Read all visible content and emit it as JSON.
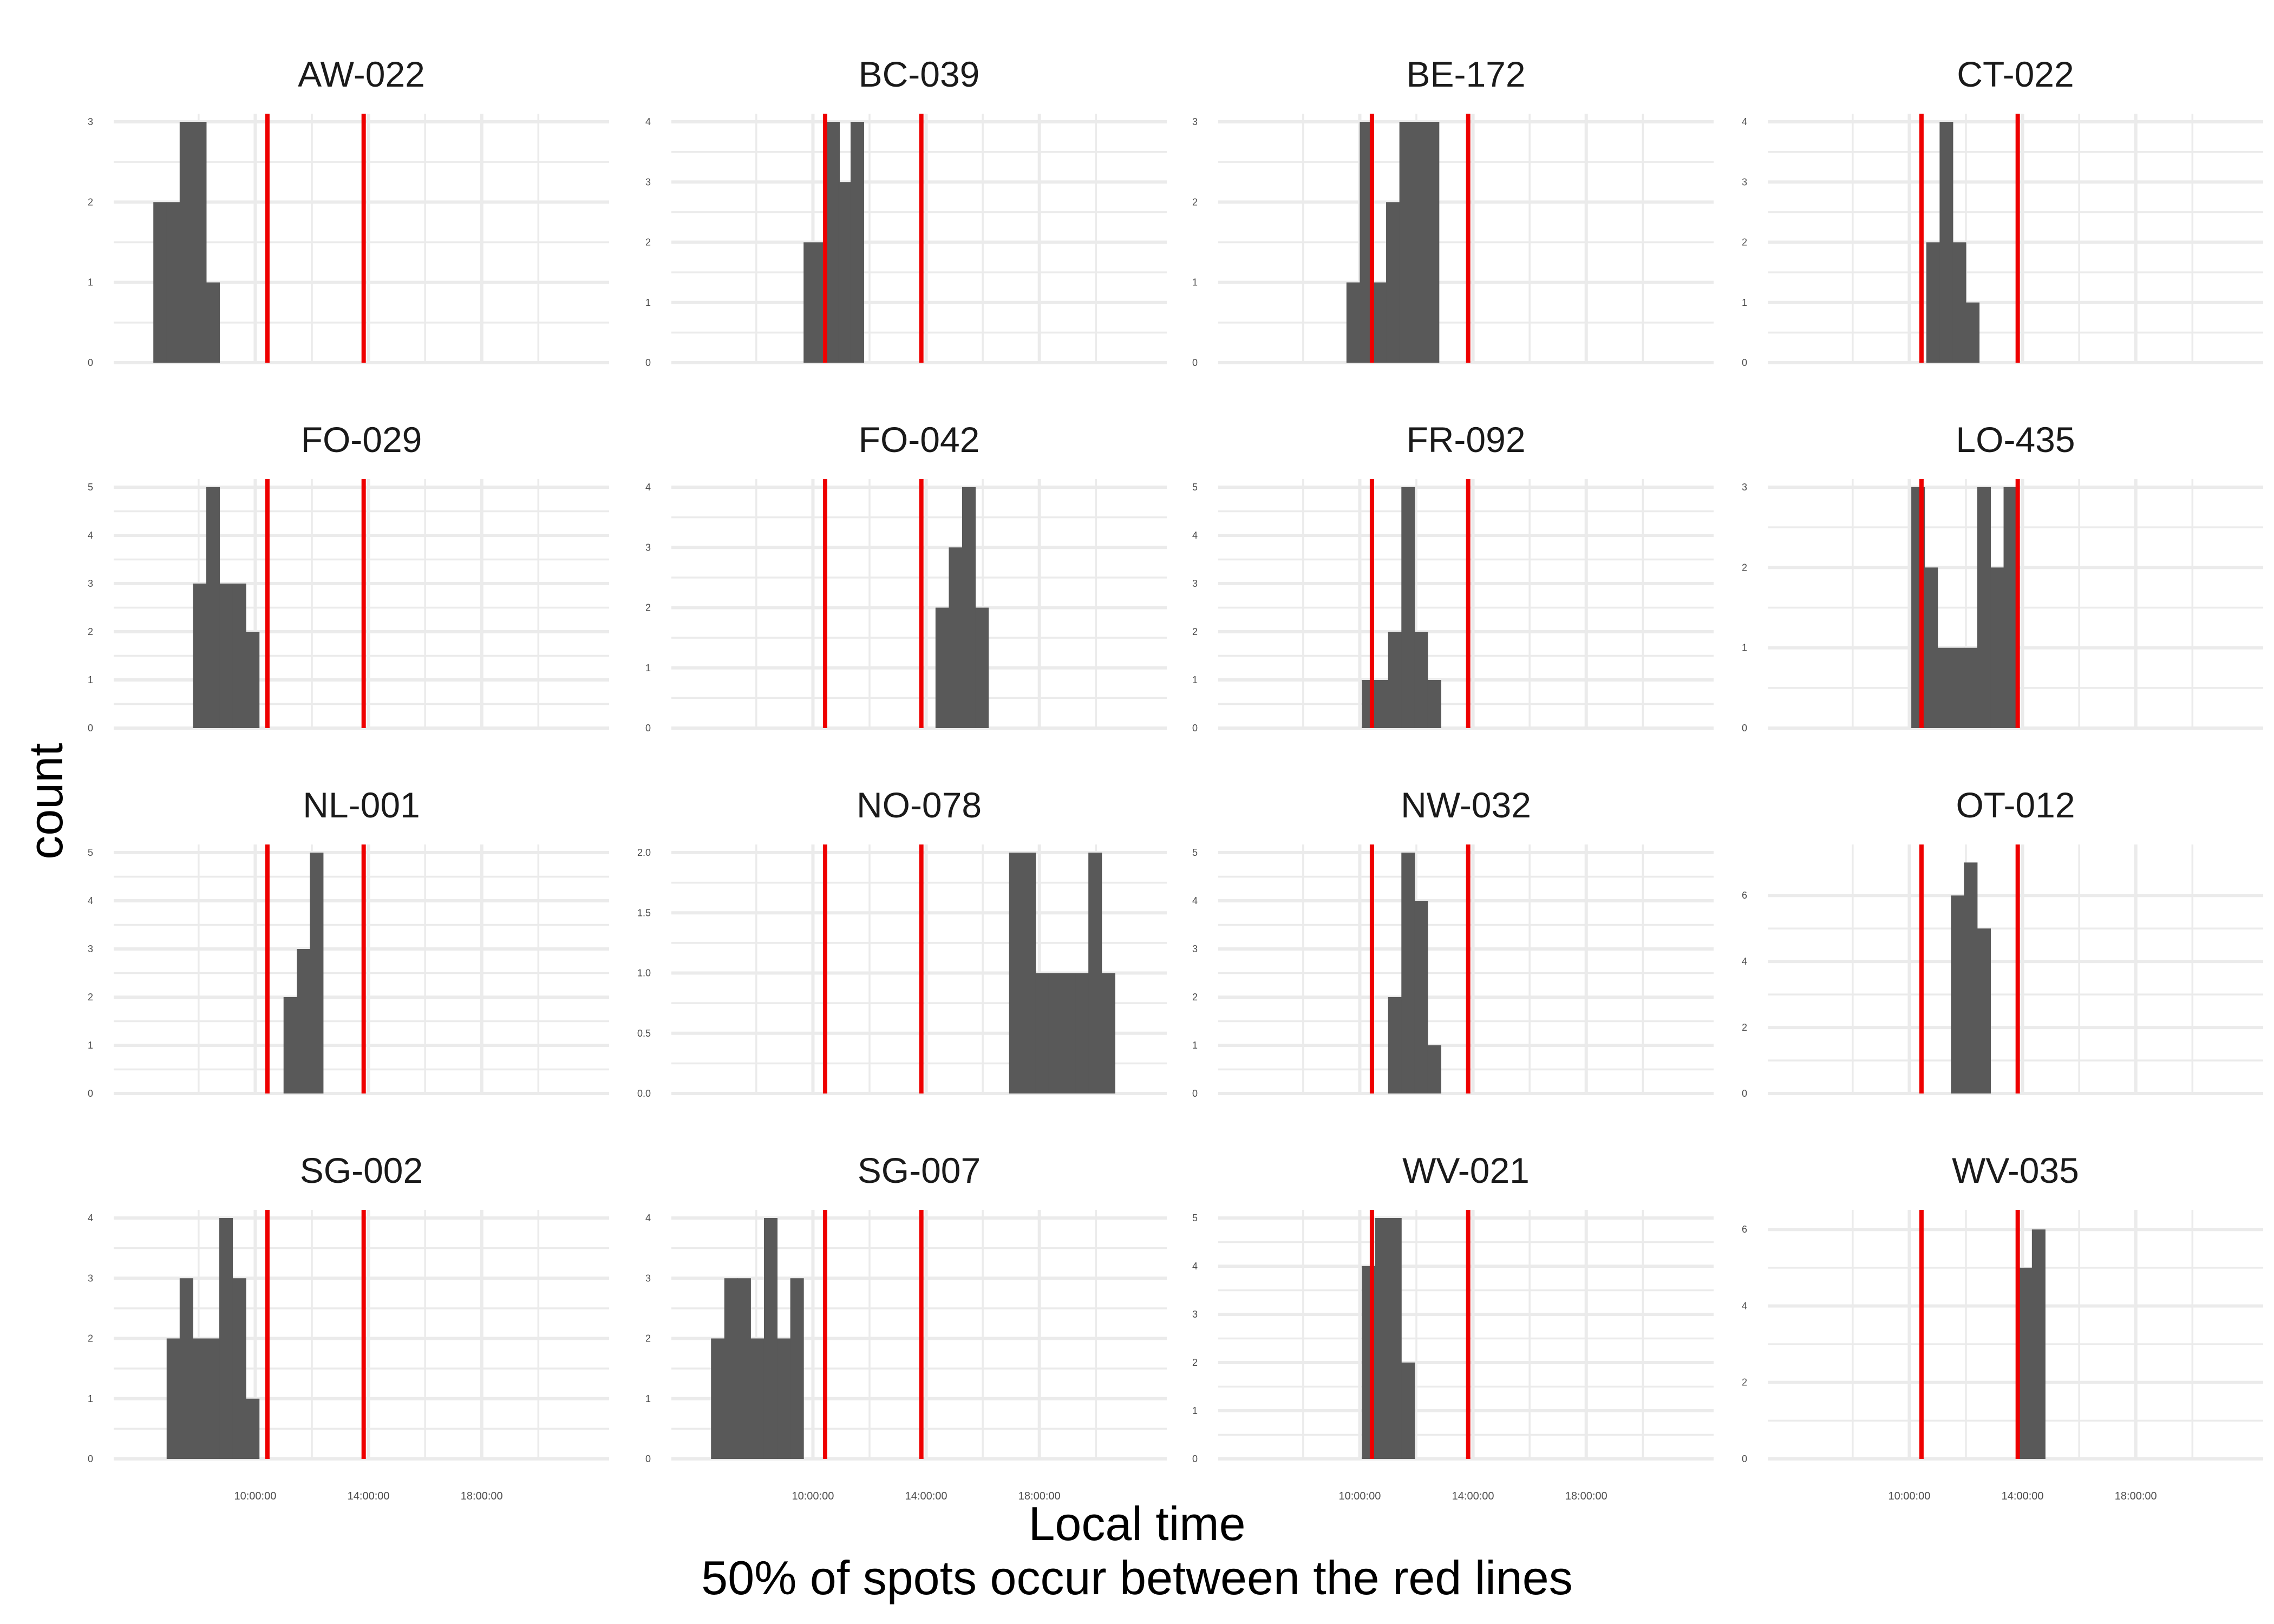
{
  "axis": {
    "xlabel": "Local time",
    "xlabel2": "50% of spots occur between the red lines",
    "ylabel": "count"
  },
  "colors": {
    "bar": "#595959",
    "quantile_line": "#ee0000",
    "grid": "#ebebeb"
  },
  "chart_data": {
    "type": "bar",
    "layout": "facet-wrap 4x4",
    "x_unit": "hours (local time of day)",
    "x_range": [
      5.0,
      22.5
    ],
    "x_ticks": [
      10,
      14,
      18
    ],
    "x_tick_labels": [
      "10:00:00",
      "14:00:00",
      "18:00:00"
    ],
    "bin_width_hours": 0.47,
    "quantile_lines": [
      10.43,
      13.83
    ],
    "grid": true,
    "panels": [
      {
        "id": "AW-022",
        "ymax": 3,
        "yticks": [
          0,
          1,
          2,
          3
        ],
        "bins": [
          [
            6.4,
            2
          ],
          [
            6.87,
            2
          ],
          [
            7.33,
            3
          ],
          [
            7.8,
            3
          ],
          [
            8.27,
            1
          ]
        ]
      },
      {
        "id": "BC-039",
        "ymax": 4,
        "yticks": [
          0,
          1,
          2,
          3,
          4
        ],
        "bins": [
          [
            9.67,
            2
          ],
          [
            10.13,
            2
          ],
          [
            10.47,
            4
          ],
          [
            10.9,
            3
          ],
          [
            11.33,
            4
          ]
        ]
      },
      {
        "id": "BE-172",
        "ymax": 3,
        "yticks": [
          0,
          1,
          2,
          3
        ],
        "bins": [
          [
            9.53,
            1
          ],
          [
            10.0,
            3
          ],
          [
            10.47,
            1
          ],
          [
            10.93,
            2
          ],
          [
            11.4,
            3
          ],
          [
            11.87,
            3
          ],
          [
            12.33,
            3
          ]
        ]
      },
      {
        "id": "CT-022",
        "ymax": 4,
        "yticks": [
          0,
          1,
          2,
          3,
          4
        ],
        "bins": [
          [
            10.6,
            2
          ],
          [
            11.07,
            4
          ],
          [
            11.53,
            2
          ],
          [
            12.0,
            1
          ]
        ]
      },
      {
        "id": "FO-029",
        "ymax": 5,
        "yticks": [
          0,
          1,
          2,
          3,
          4,
          5
        ],
        "bins": [
          [
            7.8,
            3
          ],
          [
            8.27,
            5
          ],
          [
            8.73,
            3
          ],
          [
            9.2,
            3
          ],
          [
            9.67,
            2
          ]
        ]
      },
      {
        "id": "FO-042",
        "ymax": 4,
        "yticks": [
          0,
          1,
          2,
          3,
          4
        ],
        "bins": [
          [
            14.33,
            2
          ],
          [
            14.8,
            3
          ],
          [
            15.27,
            4
          ],
          [
            15.73,
            2
          ]
        ]
      },
      {
        "id": "FR-092",
        "ymax": 5,
        "yticks": [
          0,
          1,
          2,
          3,
          4,
          5
        ],
        "bins": [
          [
            10.07,
            1
          ],
          [
            10.53,
            1
          ],
          [
            11.0,
            2
          ],
          [
            11.47,
            5
          ],
          [
            11.93,
            2
          ],
          [
            12.4,
            1
          ]
        ]
      },
      {
        "id": "LO-435",
        "ymax": 3,
        "yticks": [
          0,
          1,
          2,
          3
        ],
        "bins": [
          [
            10.07,
            3
          ],
          [
            10.53,
            2
          ],
          [
            11.0,
            1
          ],
          [
            11.47,
            1
          ],
          [
            11.93,
            1
          ],
          [
            12.4,
            3
          ],
          [
            12.87,
            2
          ],
          [
            13.33,
            3
          ]
        ]
      },
      {
        "id": "NL-001",
        "ymax": 5,
        "yticks": [
          0,
          1,
          2,
          3,
          4,
          5
        ],
        "bins": [
          [
            11.0,
            2
          ],
          [
            11.47,
            3
          ],
          [
            11.93,
            5
          ]
        ]
      },
      {
        "id": "NO-078",
        "ymax": 2.0,
        "yticks": [
          0,
          0.5,
          1.0,
          1.5,
          2.0
        ],
        "ytick_labels": [
          "0.0",
          "0.5",
          "1.0",
          "1.5",
          "2.0"
        ],
        "bins": [
          [
            16.93,
            2
          ],
          [
            17.4,
            2
          ],
          [
            17.87,
            1
          ],
          [
            18.33,
            1
          ],
          [
            18.8,
            1
          ],
          [
            19.27,
            1
          ],
          [
            19.73,
            2
          ],
          [
            20.2,
            1
          ]
        ]
      },
      {
        "id": "NW-032",
        "ymax": 5,
        "yticks": [
          0,
          1,
          2,
          3,
          4,
          5
        ],
        "bins": [
          [
            11.0,
            2
          ],
          [
            11.47,
            5
          ],
          [
            11.93,
            4
          ],
          [
            12.4,
            1
          ]
        ]
      },
      {
        "id": "OT-012",
        "ymax": 7.3,
        "yticks": [
          0,
          2,
          4,
          6
        ],
        "bins": [
          [
            11.47,
            6
          ],
          [
            11.93,
            7
          ],
          [
            12.4,
            5
          ]
        ]
      },
      {
        "id": "SG-002",
        "ymax": 4,
        "yticks": [
          0,
          1,
          2,
          3,
          4
        ],
        "bins": [
          [
            6.87,
            2
          ],
          [
            7.33,
            3
          ],
          [
            7.8,
            2
          ],
          [
            8.27,
            2
          ],
          [
            8.73,
            4
          ],
          [
            9.2,
            3
          ],
          [
            9.67,
            1
          ]
        ]
      },
      {
        "id": "SG-007",
        "ymax": 4,
        "yticks": [
          0,
          1,
          2,
          3,
          4
        ],
        "bins": [
          [
            6.4,
            2
          ],
          [
            6.87,
            3
          ],
          [
            7.33,
            3
          ],
          [
            7.8,
            2
          ],
          [
            8.27,
            4
          ],
          [
            8.73,
            2
          ],
          [
            9.2,
            3
          ]
        ]
      },
      {
        "id": "WV-021",
        "ymax": 5,
        "yticks": [
          0,
          1,
          2,
          3,
          4,
          5
        ],
        "bins": [
          [
            10.07,
            4
          ],
          [
            10.53,
            5
          ],
          [
            11.0,
            5
          ],
          [
            11.47,
            2
          ]
        ]
      },
      {
        "id": "WV-035",
        "ymax": 6.3,
        "yticks": [
          0,
          2,
          4,
          6
        ],
        "bins": [
          [
            13.87,
            5
          ],
          [
            14.33,
            6
          ]
        ]
      }
    ]
  }
}
